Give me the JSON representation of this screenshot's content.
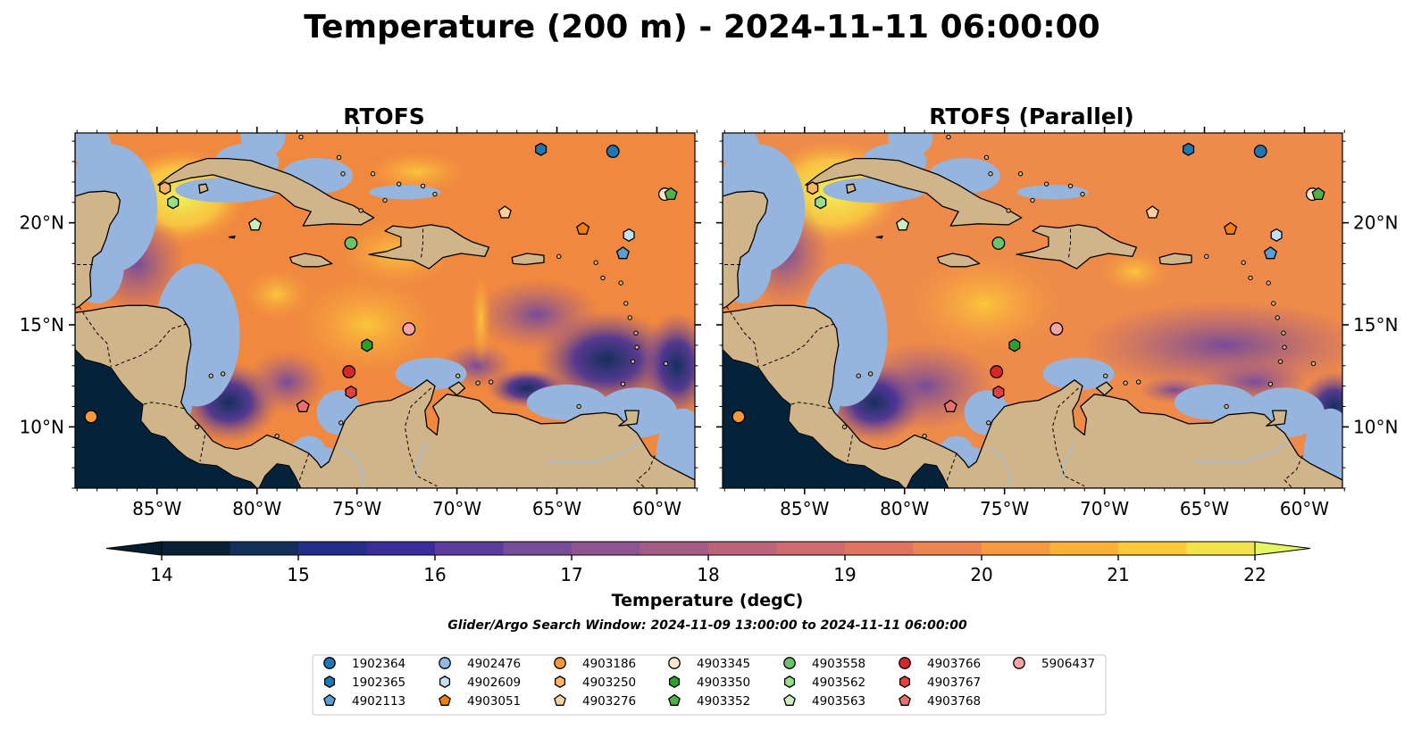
{
  "title": "Temperature (200 m) - 2024-11-11 06:00:00",
  "panels": [
    {
      "title": "RTOFS"
    },
    {
      "title": "RTOFS (Parallel)"
    }
  ],
  "lon_ticks": [
    {
      "value": -85,
      "label": "85°W"
    },
    {
      "value": -80,
      "label": "80°W"
    },
    {
      "value": -75,
      "label": "75°W"
    },
    {
      "value": -70,
      "label": "70°W"
    },
    {
      "value": -65,
      "label": "65°W"
    },
    {
      "value": -60,
      "label": "60°W"
    }
  ],
  "lat_ticks": [
    {
      "value": 20,
      "label": "20°N"
    },
    {
      "value": 15,
      "label": "15°N"
    },
    {
      "value": 10,
      "label": "10°N"
    }
  ],
  "colorbar": {
    "label": "Temperature (degC)",
    "min": 14,
    "max": 22,
    "tick_values": [
      14,
      15,
      16,
      17,
      18,
      19,
      20,
      21,
      22
    ],
    "tick_labels": [
      "14",
      "15",
      "16",
      "17",
      "18",
      "19",
      "20",
      "21",
      "22"
    ],
    "colors": [
      "#0a2036",
      "#13305c",
      "#222f8a",
      "#3b2c9c",
      "#5c3b9e",
      "#774c99",
      "#8e5490",
      "#a65b86",
      "#bd6379",
      "#cf6b6e",
      "#e0745f",
      "#ee8550",
      "#f7993f",
      "#fcb035",
      "#fbc93a",
      "#f4e24a"
    ],
    "under_color": "#051d30",
    "over_color": "#e6f460"
  },
  "search_window": "Glider/Argo Search Window: 2024-11-09 13:00:00 to 2024-11-11 06:00:00",
  "legend": [
    {
      "id": "1902364",
      "marker": "circle",
      "color": "#1f77b4"
    },
    {
      "id": "1902365",
      "marker": "hexagon",
      "color": "#1f77b4"
    },
    {
      "id": "4902113",
      "marker": "pentagon",
      "color": "#5a9ed6"
    },
    {
      "id": "4902476",
      "marker": "circle",
      "color": "#8fbbe3"
    },
    {
      "id": "4902609",
      "marker": "hexagon",
      "color": "#bfe0f7"
    },
    {
      "id": "4903051",
      "marker": "pentagon",
      "color": "#f07f0c"
    },
    {
      "id": "4903186",
      "marker": "circle",
      "color": "#f79839"
    },
    {
      "id": "4903250",
      "marker": "hexagon",
      "color": "#fbb466"
    },
    {
      "id": "4903276",
      "marker": "pentagon",
      "color": "#fdd0a0"
    },
    {
      "id": "4903345",
      "marker": "circle",
      "color": "#fde6cc"
    },
    {
      "id": "4903350",
      "marker": "hexagon",
      "color": "#2ca02c"
    },
    {
      "id": "4903352",
      "marker": "pentagon",
      "color": "#4fb14a"
    },
    {
      "id": "4903558",
      "marker": "circle",
      "color": "#6cc26a"
    },
    {
      "id": "4903562",
      "marker": "hexagon",
      "color": "#98df8a"
    },
    {
      "id": "4903563",
      "marker": "pentagon",
      "color": "#c8f0bd"
    },
    {
      "id": "4903766",
      "marker": "circle",
      "color": "#d62728"
    },
    {
      "id": "4903767",
      "marker": "hexagon",
      "color": "#e0403f"
    },
    {
      "id": "4903768",
      "marker": "pentagon",
      "color": "#ea7070"
    },
    {
      "id": "5906437",
      "marker": "circle",
      "color": "#f5a3a3"
    }
  ],
  "observations": [
    {
      "id": "1902364",
      "lon": -62.2,
      "lat": 23.5
    },
    {
      "id": "1902365",
      "lon": -65.8,
      "lat": 23.6
    },
    {
      "id": "4902113",
      "lon": -61.7,
      "lat": 18.5
    },
    {
      "id": "4902609",
      "lon": -61.4,
      "lat": 19.4
    },
    {
      "id": "4903051",
      "lon": -63.7,
      "lat": 19.7
    },
    {
      "id": "4903186",
      "lon": -88.3,
      "lat": 10.5
    },
    {
      "id": "4903250",
      "lon": -84.6,
      "lat": 21.7
    },
    {
      "id": "4903276",
      "lon": -67.6,
      "lat": 20.5
    },
    {
      "id": "4903345",
      "lon": -59.6,
      "lat": 21.4
    },
    {
      "id": "4903350",
      "lon": -74.5,
      "lat": 14.0
    },
    {
      "id": "4903352",
      "lon": -59.3,
      "lat": 21.4
    },
    {
      "id": "4903558",
      "lon": -75.3,
      "lat": 19.0
    },
    {
      "id": "4903562",
      "lon": -84.2,
      "lat": 21.0
    },
    {
      "id": "4903563",
      "lon": -80.1,
      "lat": 19.9
    },
    {
      "id": "4903766",
      "lon": -75.4,
      "lat": 12.7
    },
    {
      "id": "4903767",
      "lon": -75.3,
      "lat": 11.7
    },
    {
      "id": "4903768",
      "lon": -77.7,
      "lat": 11.0
    },
    {
      "id": "5906437",
      "lon": -72.4,
      "lat": 14.8
    }
  ]
}
